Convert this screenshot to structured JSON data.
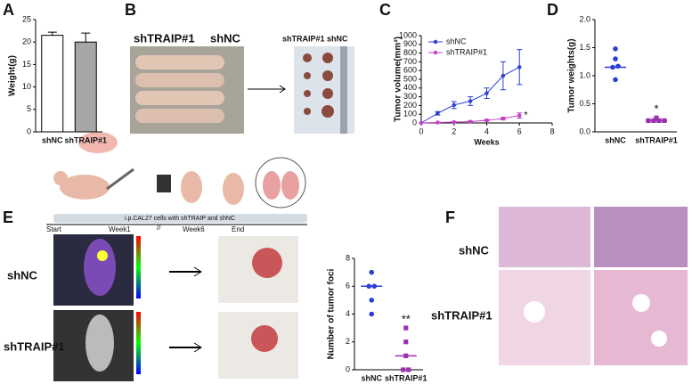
{
  "panel_letters": [
    "A",
    "B",
    "C",
    "D",
    "E",
    "F"
  ],
  "panel_b": {
    "photo_labels": [
      "shTRAIP#1",
      "shNC"
    ],
    "tumor_labels": "shTRAIP#1 shNC"
  },
  "panel_e": {
    "timeline": "i.p.CAL27 cells with shTRAIP and shNC",
    "stages": [
      "Start",
      "Week1",
      "Week6",
      "End"
    ],
    "break": "//",
    "groups": [
      "shNC",
      "shTRAIP#1"
    ]
  },
  "panel_f": {
    "groups": [
      "shNC",
      "shTRAIP#1"
    ]
  },
  "chart_data": [
    {
      "type": "bar",
      "ylabel": "Weight(g)",
      "categories": [
        "shNC",
        "shTRAIP#1"
      ],
      "values": [
        21.5,
        20
      ],
      "errors": [
        0.7,
        2
      ],
      "colors": [
        "#ffffff",
        "#a6a6a6"
      ],
      "ylim": [
        0,
        25
      ],
      "yticks": [
        0,
        5,
        10,
        15,
        20,
        25
      ]
    },
    {
      "type": "line",
      "xlabel": "Weeks",
      "ylabel": "Tumor volume(mm³)",
      "x": [
        0,
        1,
        2,
        3,
        4,
        5,
        6
      ],
      "series": [
        {
          "name": "shNC",
          "color": "#2b3fd6",
          "values": [
            0,
            110,
            205,
            250,
            340,
            540,
            640
          ],
          "errors": [
            0,
            20,
            40,
            50,
            60,
            160,
            200
          ]
        },
        {
          "name": "shTRAIP#1",
          "color": "#c23fc6",
          "values": [
            0,
            5,
            10,
            15,
            30,
            50,
            85
          ],
          "errors": [
            0,
            3,
            5,
            8,
            10,
            15,
            30
          ]
        }
      ],
      "xlim": [
        0,
        8
      ],
      "xticks": [
        0,
        2,
        4,
        6,
        8
      ],
      "ylim": [
        0,
        1000
      ],
      "yticks": [
        0,
        100,
        200,
        300,
        400,
        500,
        600,
        700,
        800,
        900,
        1000
      ],
      "legend": "upper left",
      "annotation": "*"
    },
    {
      "type": "scatter",
      "ylabel": "Tumor weights(g)",
      "categories": [
        "shNC",
        "shTRAIP#1"
      ],
      "points": [
        [
          1.48,
          1.3,
          1.15,
          1.17,
          0.93
        ],
        [
          0.25,
          0.2,
          0.2,
          0.2,
          0.2
        ]
      ],
      "medians": [
        1.15,
        0.2
      ],
      "colors": [
        "#2b3fd6",
        "#9b2fb0"
      ],
      "ylim": [
        0,
        2
      ],
      "yticks": [
        {
          "value": 0,
          "label": "0.0"
        },
        {
          "value": 0.5,
          "label": "0.5"
        },
        {
          "value": 1,
          "label": "1.0"
        },
        {
          "value": 1.5,
          "label": "1.5"
        },
        {
          "value": 2,
          "label": "2.0"
        }
      ],
      "annotation": "*"
    },
    {
      "type": "scatter",
      "ylabel": "Number of tumor foci",
      "categories": [
        "shNC",
        "shTRAIP#1"
      ],
      "points": [
        [
          7,
          6,
          6,
          5,
          4
        ],
        [
          3,
          2,
          1,
          0,
          0
        ]
      ],
      "medians": [
        6,
        1
      ],
      "colors": [
        "#2b3fd6",
        "#9b2fb0"
      ],
      "ylim": [
        0,
        8
      ],
      "yticks": [
        0,
        2,
        4,
        6,
        8
      ],
      "annotation": "**"
    }
  ]
}
